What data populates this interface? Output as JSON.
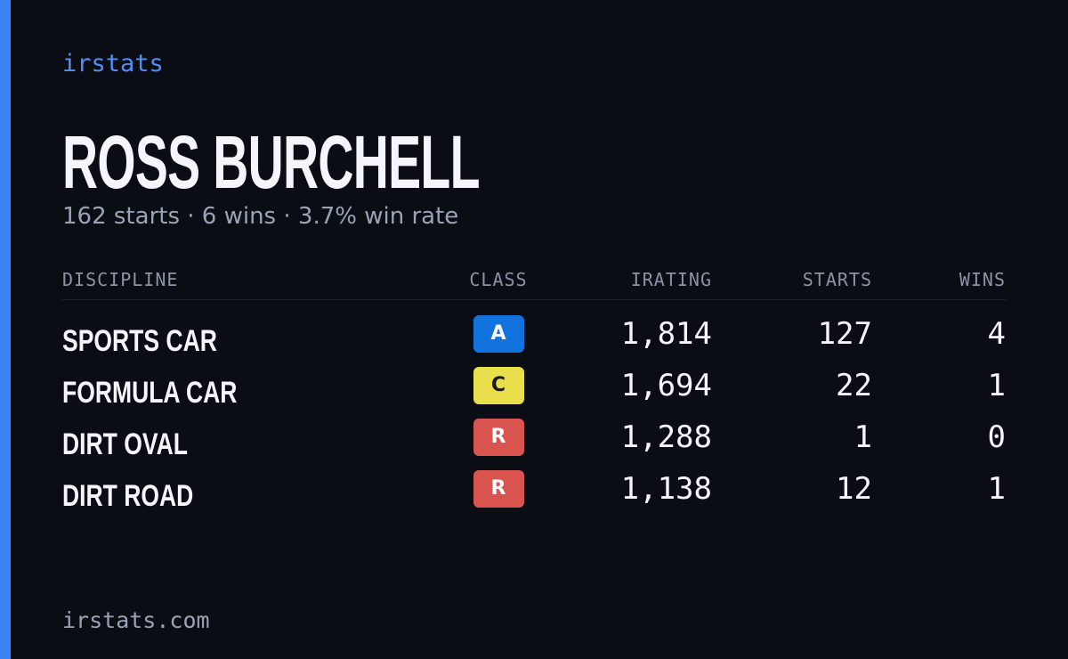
{
  "brand": "irstats",
  "name": "ROSS BURCHELL",
  "summary": "162 starts · 6 wins · 3.7% win rate",
  "table": {
    "headers": [
      "DISCIPLINE",
      "CLASS",
      "IRATING",
      "STARTS",
      "WINS"
    ],
    "rows": [
      [
        "SPORTS CAR",
        "A",
        "1,814",
        "127",
        "4"
      ],
      [
        "FORMULA CAR",
        "C",
        "1,694",
        "22",
        "1"
      ],
      [
        "DIRT OVAL",
        "R",
        "1,288",
        "1",
        "0"
      ],
      [
        "DIRT ROAD",
        "R",
        "1,138",
        "12",
        "1"
      ]
    ]
  },
  "footer": "irstats.com"
}
